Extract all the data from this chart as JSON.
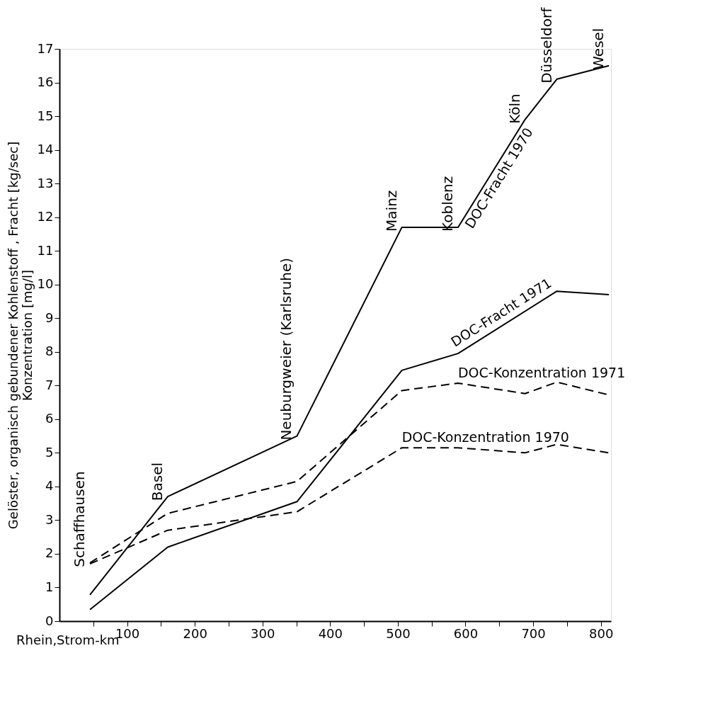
{
  "chart_data": {
    "type": "line",
    "xlabel": "Rhein,Strom-km",
    "ylabel": "Gelöster, organisch gebundener Kohlenstoff , Fracht [kg/sec]\nKonzentration [mg/l]",
    "xlim": [
      0,
      815
    ],
    "ylim": [
      0,
      17
    ],
    "xticks": [
      {
        "value": 50,
        "label": null
      },
      100,
      {
        "value": 150,
        "label": null
      },
      200,
      {
        "value": 250,
        "label": null
      },
      300,
      {
        "value": 350,
        "label": null
      },
      400,
      {
        "value": 450,
        "label": null
      },
      500,
      {
        "value": 550,
        "label": null
      },
      600,
      {
        "value": 650,
        "label": null
      },
      700,
      {
        "value": 750,
        "label": null
      },
      800
    ],
    "yticks": [
      0,
      1,
      2,
      3,
      4,
      5,
      6,
      7,
      8,
      9,
      10,
      11,
      12,
      13,
      14,
      15,
      16,
      17
    ],
    "grid": false,
    "marker": "none",
    "series": [
      {
        "name": "DOC-Fracht 1970",
        "color": "#000000",
        "line_style": "solid",
        "x": [
          45,
          160,
          351,
          506,
          589,
          688,
          735,
          812
        ],
        "values": [
          0.78,
          3.7,
          5.5,
          11.7,
          11.7,
          14.9,
          16.1,
          16.5
        ]
      },
      {
        "name": "DOC-Fracht 1971",
        "color": "#000000",
        "line_style": "solid",
        "x": [
          45,
          160,
          351,
          506,
          589,
          735,
          812
        ],
        "values": [
          0.34,
          2.2,
          3.55,
          7.45,
          7.95,
          9.8,
          9.7
        ]
      },
      {
        "name": "DOC-Konzentration 1971",
        "color": "#000000",
        "line_style": "dashed",
        "x": [
          45,
          160,
          351,
          506,
          589,
          688,
          735,
          812
        ],
        "values": [
          1.73,
          3.2,
          4.15,
          6.85,
          7.07,
          6.76,
          7.1,
          6.72
        ]
      },
      {
        "name": "DOC-Konzentration 1970",
        "color": "#000000",
        "line_style": "dashed",
        "x": [
          45,
          160,
          351,
          506,
          589,
          688,
          735,
          812
        ],
        "values": [
          1.7,
          2.7,
          3.25,
          5.15,
          5.15,
          5.0,
          5.25,
          5.0
        ]
      }
    ],
    "annotations": [
      "Schaffhausen",
      "Basel",
      "Neuburgweier (Karlsruhe)",
      "Mainz",
      "Koblenz",
      "Köln",
      "Düsseldorf",
      "Wesel"
    ]
  }
}
